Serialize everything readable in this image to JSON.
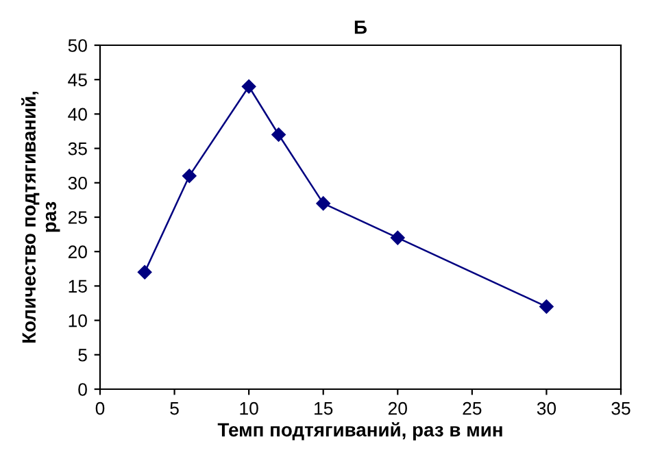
{
  "chart_data": {
    "type": "line",
    "title": "Б",
    "xlabel": "Темп подтягиваний, раз в мин",
    "ylabel": "Количество подтягиваний,\nраз",
    "x": [
      3,
      6,
      10,
      12,
      15,
      20,
      30
    ],
    "series": [
      {
        "color": "#000080",
        "values": [
          17,
          31,
          44,
          37,
          27,
          22,
          12
        ]
      }
    ],
    "xlim": [
      0,
      35
    ],
    "xticks": [
      0,
      5,
      10,
      15,
      20,
      25,
      30,
      35
    ],
    "ylim": [
      0,
      50
    ],
    "yticks": [
      0,
      5,
      10,
      15,
      20,
      25,
      30,
      35,
      40,
      45,
      50
    ],
    "grid": false,
    "legend": false,
    "marker": "diamond",
    "line_style": "solid"
  }
}
